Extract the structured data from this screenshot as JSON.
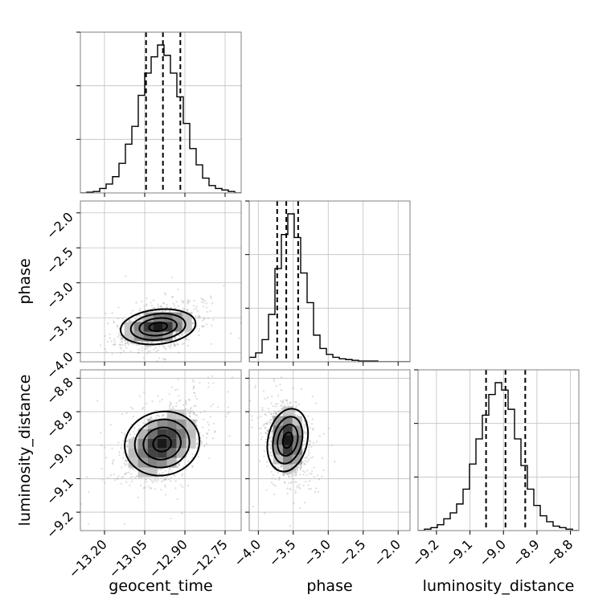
{
  "chart_data": {
    "type": "corner",
    "parameters": [
      "geocent_time",
      "phase",
      "luminosity_distance"
    ],
    "labels": {
      "geocent_time": "geocent_time",
      "phase": "phase",
      "luminosity_distance": "luminosity_distance"
    },
    "ranges": {
      "geocent_time": [
        -13.29,
        -12.69
      ],
      "phase": [
        -4.13,
        -1.83
      ],
      "luminosity_distance": [
        -9.255,
        -8.775
      ]
    },
    "ticks": {
      "geocent_time": [
        {
          "value": -13.2,
          "label": "−13.20"
        },
        {
          "value": -13.05,
          "label": "−13.05"
        },
        {
          "value": -12.9,
          "label": "−12.90"
        },
        {
          "value": -12.75,
          "label": "−12.75"
        }
      ],
      "phase": [
        {
          "value": -4.0,
          "label": "−4.0"
        },
        {
          "value": -3.5,
          "label": "−3.5"
        },
        {
          "value": -3.0,
          "label": "−3.0"
        },
        {
          "value": -2.5,
          "label": "−2.5"
        },
        {
          "value": -2.0,
          "label": "−2.0"
        }
      ],
      "luminosity_distance": [
        {
          "value": -9.2,
          "label": "−9.2"
        },
        {
          "value": -9.1,
          "label": "−9.1"
        },
        {
          "value": -9.0,
          "label": "−9.0"
        },
        {
          "value": -8.9,
          "label": "−8.9"
        },
        {
          "value": -8.8,
          "label": "−8.8"
        }
      ]
    },
    "histograms": {
      "geocent_time": [
        0.0,
        0.005,
        0.01,
        0.03,
        0.06,
        0.11,
        0.2,
        0.33,
        0.45,
        0.66,
        0.81,
        0.92,
        1.0,
        0.93,
        0.81,
        0.65,
        0.47,
        0.3,
        0.19,
        0.1,
        0.05,
        0.03,
        0.02,
        0.01,
        0.0
      ],
      "phase": [
        0.03,
        0.06,
        0.15,
        0.32,
        0.63,
        0.86,
        1.0,
        0.84,
        0.6,
        0.4,
        0.18,
        0.09,
        0.05,
        0.03,
        0.02,
        0.015,
        0.01,
        0.005,
        0.005,
        0.005,
        0.0,
        0.0,
        0.0,
        0.0,
        0.0
      ],
      "luminosity_distance": [
        0.0,
        0.01,
        0.02,
        0.04,
        0.08,
        0.12,
        0.18,
        0.28,
        0.45,
        0.62,
        0.78,
        0.92,
        1.0,
        0.95,
        0.82,
        0.62,
        0.44,
        0.28,
        0.17,
        0.1,
        0.06,
        0.03,
        0.02,
        0.01,
        0.0
      ]
    },
    "quantiles": {
      "geocent_time": [
        -13.045,
        -12.982,
        -12.917
      ],
      "phase": [
        -3.73,
        -3.6,
        -3.43
      ],
      "luminosity_distance": [
        -9.052,
        -8.994,
        -8.935
      ]
    },
    "density_centers": {
      "phase_vs_geocent_time": {
        "x": -13.0,
        "y": -3.63
      },
      "luminosity_distance_vs_geocent_time": {
        "x": -12.985,
        "y": -8.995
      },
      "luminosity_distance_vs_phase": {
        "x": -3.58,
        "y": -8.985
      }
    },
    "grid": true
  }
}
